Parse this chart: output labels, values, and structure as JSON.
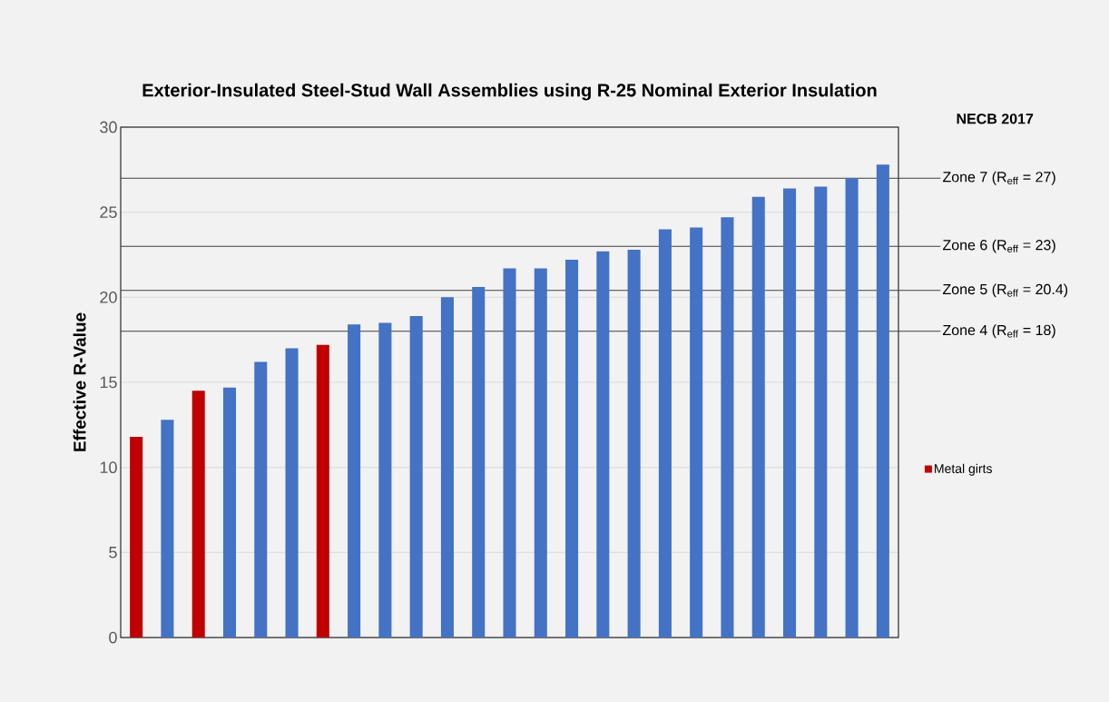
{
  "chart_data": {
    "type": "bar",
    "title": "Exterior-Insulated Steel-Stud Wall Assemblies using R-25 Nominal Exterior Insulation",
    "ylabel": "Effective R-Value",
    "categories": [
      null,
      null,
      null,
      null,
      null,
      null,
      null,
      null,
      null,
      null,
      null,
      null,
      null,
      null,
      null,
      null,
      null,
      null,
      null,
      null,
      null,
      null,
      null,
      null,
      null
    ],
    "series": [
      {
        "color": "#4472c4",
        "values": [
          null,
          12.8,
          null,
          14.7,
          16.2,
          17.0,
          null,
          18.4,
          18.5,
          18.9,
          20.0,
          20.6,
          21.7,
          21.7,
          22.2,
          22.7,
          22.8,
          24.0,
          24.1,
          24.7,
          25.9,
          26.4,
          26.5,
          27.0,
          27.8
        ]
      },
      {
        "name": "Metal girts",
        "color": "#c00000",
        "values": [
          11.8,
          null,
          14.5,
          null,
          null,
          null,
          17.2,
          null,
          null,
          null,
          null,
          null,
          null,
          null,
          null,
          null,
          null,
          null,
          null,
          null,
          null,
          null,
          null,
          null,
          null
        ]
      }
    ],
    "ylim": [
      0,
      30
    ],
    "yticks": [
      0,
      5,
      10,
      15,
      20,
      25,
      30
    ],
    "grid": "y",
    "legend": "right",
    "ref_lines": [
      {
        "axis": "y",
        "value": 27,
        "label": "Zone 7 (R$_{eff}$ = 27)",
        "color": "#404040"
      },
      {
        "axis": "y",
        "value": 23,
        "label": "Zone 6 (R$_{eff}$ = 23)",
        "color": "#404040"
      },
      {
        "axis": "y",
        "value": 20.4,
        "label": "Zone 5 (R$_{eff}$ = 20.4)",
        "color": "#404040"
      },
      {
        "axis": "y",
        "value": 18,
        "label": "Zone 4 (R$_{eff}$ = 18)",
        "color": "#404040"
      }
    ],
    "annotations": [
      "NECB 2017"
    ]
  }
}
